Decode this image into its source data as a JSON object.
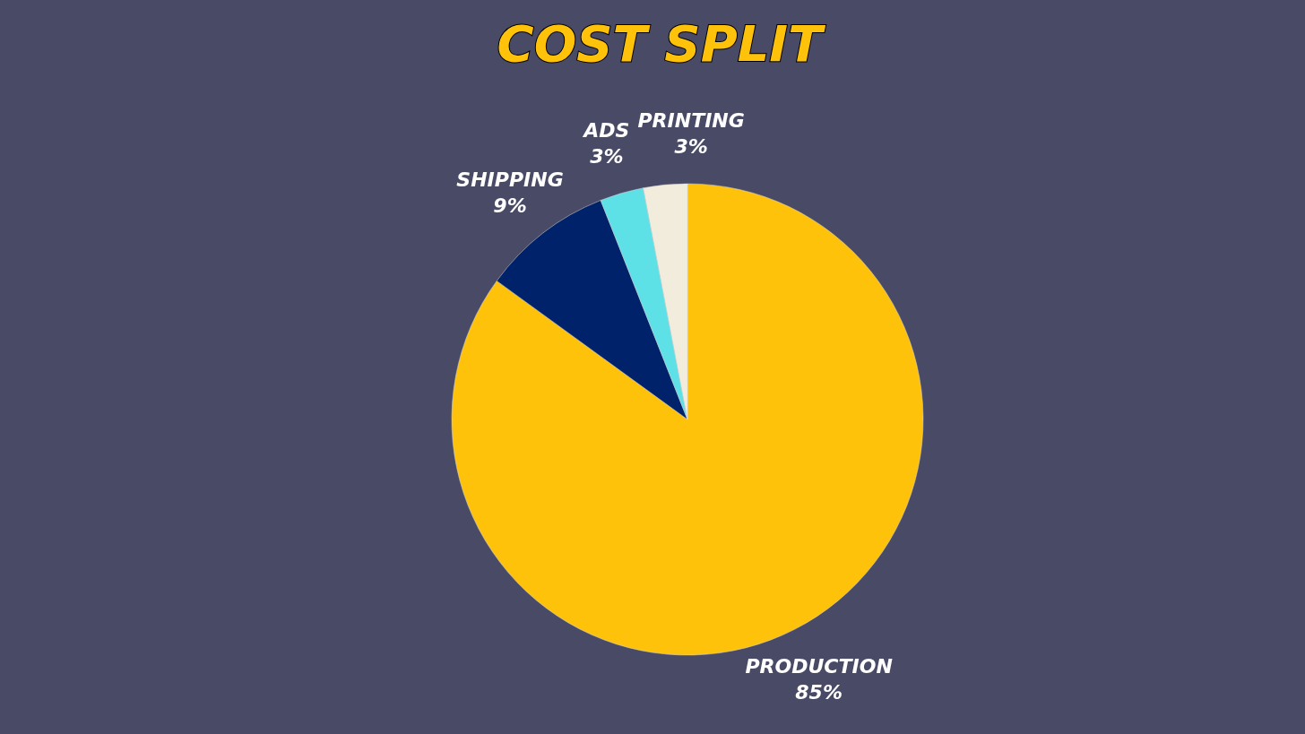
{
  "chart_data": {
    "type": "pie",
    "title": "COST SPLIT",
    "categories": [
      "PRODUCTION",
      "SHIPPING",
      "ADS",
      "PRINTING"
    ],
    "values": [
      85,
      9,
      3,
      3
    ],
    "colors": [
      "#fec20a",
      "#00226a",
      "#5de0e6",
      "#f1ecdc"
    ],
    "value_labels": [
      "85%",
      "9%",
      "3%",
      "3%"
    ]
  }
}
